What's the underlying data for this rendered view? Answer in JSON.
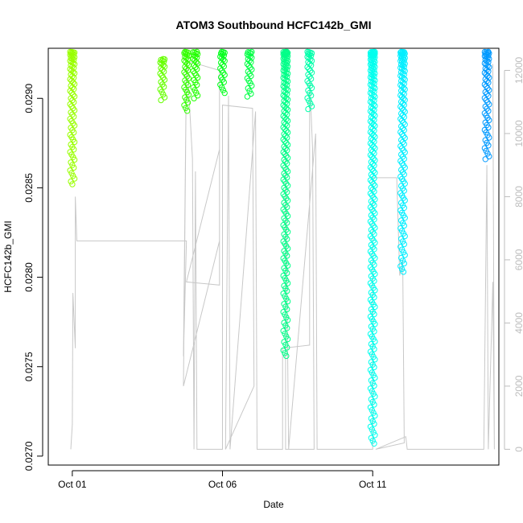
{
  "chart_data": {
    "type": "scatter",
    "title": "ATOM3 Southbound HCFC142b_GMI",
    "xlabel": "Date",
    "ylabel": "HCFC142b_GMI",
    "x_range_days": [
      -0.8,
      14.2
    ],
    "ylim_left": [
      0.02695,
      0.02928
    ],
    "ylim_right": [
      -500,
      12700
    ],
    "x_ticks": [
      {
        "day": 0,
        "label": "Oct 01"
      },
      {
        "day": 5,
        "label": "Oct 06"
      },
      {
        "day": 10,
        "label": "Oct 11"
      }
    ],
    "y_ticks_left": [
      {
        "value": 0.027,
        "label": "0.0270"
      },
      {
        "value": 0.0275,
        "label": "0.0275"
      },
      {
        "value": 0.028,
        "label": "0.0280"
      },
      {
        "value": 0.0285,
        "label": "0.0285"
      },
      {
        "value": 0.029,
        "label": "0.0290"
      }
    ],
    "y_ticks_right": [
      {
        "value": 0,
        "label": "0"
      },
      {
        "value": 2000,
        "label": "2000"
      },
      {
        "value": 4000,
        "label": "4000"
      },
      {
        "value": 6000,
        "label": "6000"
      },
      {
        "value": 8000,
        "label": "8000"
      },
      {
        "value": 10000,
        "label": "10000"
      },
      {
        "value": 12000,
        "label": "12000"
      }
    ],
    "right_axis_series": "altitude track (gray line)",
    "point_series": [
      {
        "day": 0.0,
        "ymin": 0.02852,
        "ymax": 0.02926,
        "color": "#99ff00"
      },
      {
        "day": 3.0,
        "ymin": 0.02899,
        "ymax": 0.02922,
        "color": "#66ff00"
      },
      {
        "day": 3.8,
        "ymin": 0.02893,
        "ymax": 0.02926,
        "color": "#33ff00"
      },
      {
        "day": 4.1,
        "ymin": 0.029,
        "ymax": 0.02926,
        "color": "#22ff00"
      },
      {
        "day": 5.0,
        "ymin": 0.02903,
        "ymax": 0.02926,
        "color": "#00ff1a"
      },
      {
        "day": 5.9,
        "ymin": 0.02901,
        "ymax": 0.02926,
        "color": "#00ff44"
      },
      {
        "day": 7.1,
        "ymin": 0.02756,
        "ymax": 0.02926,
        "color": "#00ff88"
      },
      {
        "day": 7.9,
        "ymin": 0.02894,
        "ymax": 0.02926,
        "color": "#00ffaa"
      },
      {
        "day": 10.0,
        "ymin": 0.02707,
        "ymax": 0.02926,
        "color": "#00ffee"
      },
      {
        "day": 11.0,
        "ymin": 0.02803,
        "ymax": 0.02926,
        "color": "#00eeff"
      },
      {
        "day": 13.8,
        "ymin": 0.02866,
        "ymax": 0.02926,
        "color": "#0099ff"
      }
    ],
    "altitude_track": [
      [
        -0.05,
        0
      ],
      [
        0.0,
        800
      ],
      [
        0.02,
        4950
      ],
      [
        0.1,
        3200
      ],
      [
        0.1,
        8000
      ],
      [
        0.15,
        6600
      ],
      [
        3.8,
        6600
      ],
      [
        3.7,
        2950
      ],
      [
        3.8,
        12300
      ],
      [
        3.7,
        2000
      ],
      [
        4.9,
        6600
      ],
      [
        4.9,
        9500
      ],
      [
        3.8,
        5300
      ],
      [
        4.9,
        5200
      ],
      [
        4.9,
        12000
      ],
      [
        3.82,
        12300
      ],
      [
        4.0,
        9200
      ],
      [
        4.05,
        0
      ],
      [
        4.1,
        8800
      ],
      [
        4.15,
        0
      ],
      [
        5.0,
        0
      ],
      [
        5.0,
        10900
      ],
      [
        6.0,
        10800
      ],
      [
        6.05,
        2000
      ],
      [
        5.1,
        0
      ],
      [
        5.2,
        11200
      ],
      [
        5.25,
        0
      ],
      [
        6.1,
        10700
      ],
      [
        6.15,
        0
      ],
      [
        7.0,
        0.0
      ],
      [
        7.0,
        3200
      ],
      [
        7.9,
        3300
      ],
      [
        7.9,
        11800
      ],
      [
        8.0,
        9500
      ],
      [
        8.05,
        0
      ],
      [
        7.1,
        0
      ],
      [
        7.1,
        9600
      ],
      [
        7.2,
        0
      ],
      [
        8.1,
        10000
      ],
      [
        8.15,
        0
      ],
      [
        10.0,
        0
      ],
      [
        10.0,
        8600
      ],
      [
        10.8,
        8600
      ],
      [
        10.9,
        5500
      ],
      [
        11.0,
        6000
      ],
      [
        11.05,
        200
      ],
      [
        10.1,
        0
      ],
      [
        11.1,
        400
      ],
      [
        11.15,
        0
      ],
      [
        13.7,
        0
      ],
      [
        13.8,
        9000
      ],
      [
        13.85,
        0
      ],
      [
        14.0,
        5300
      ],
      [
        14.05,
        0
      ],
      [
        14.0,
        12200
      ]
    ]
  }
}
